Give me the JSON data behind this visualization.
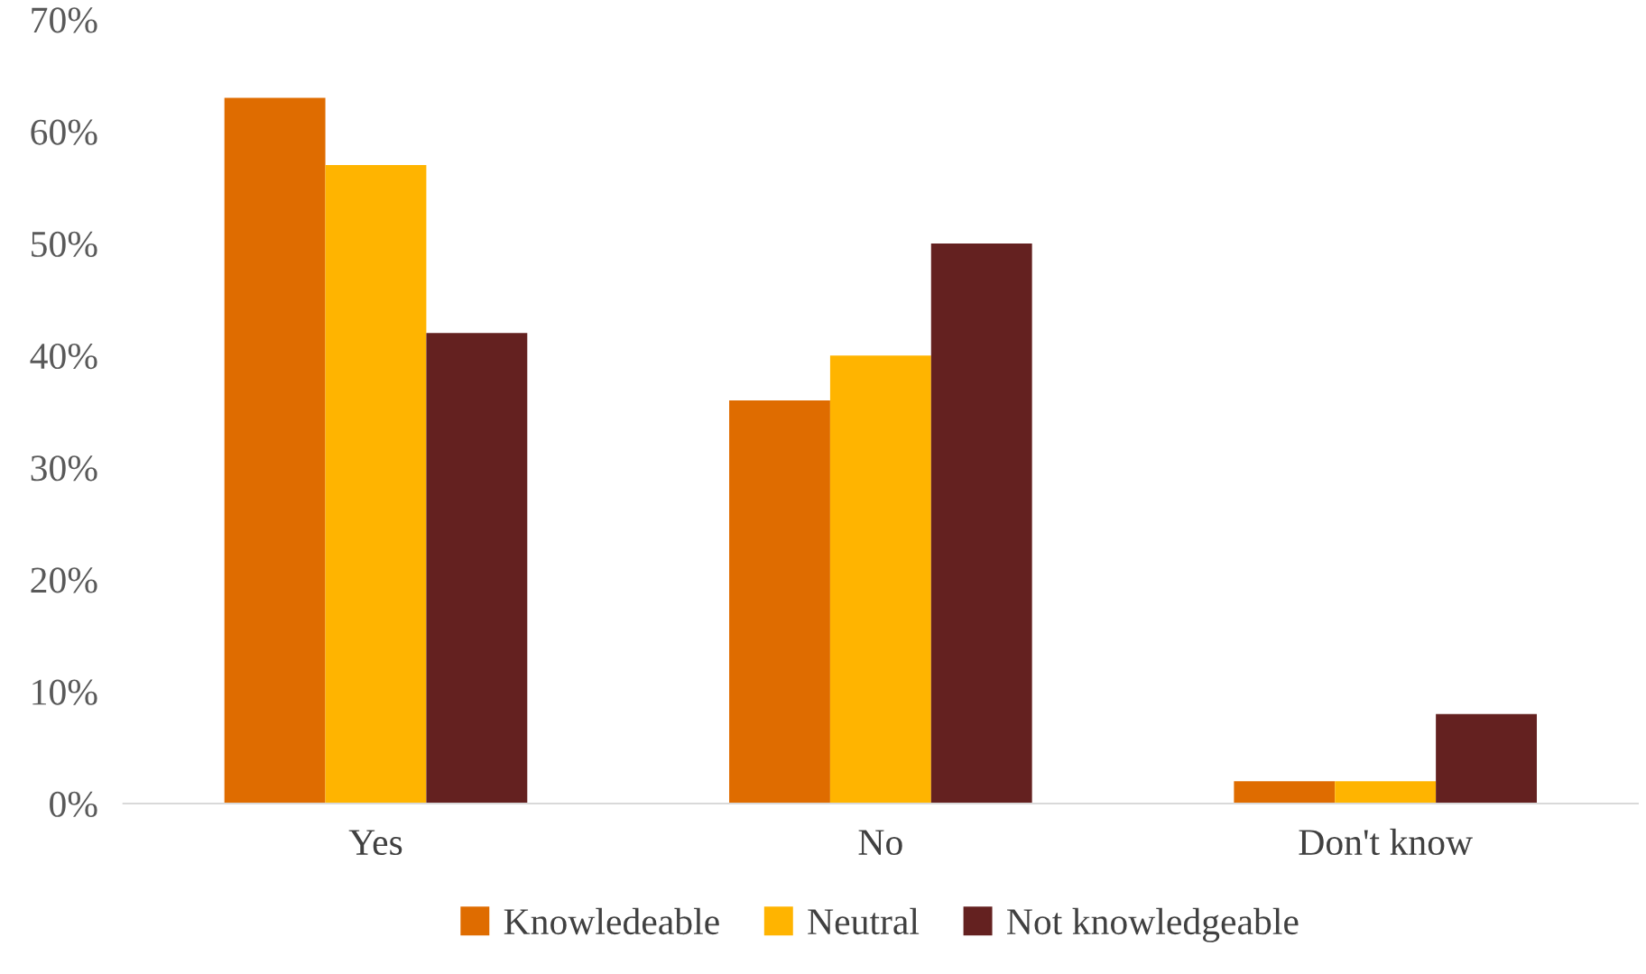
{
  "chart_data": {
    "type": "bar",
    "categories": [
      "Yes",
      "No",
      "Don't know"
    ],
    "series": [
      {
        "name": "Knowledeable",
        "color": "#df6c00",
        "values": [
          63,
          36,
          2
        ]
      },
      {
        "name": "Neutral",
        "color": "#ffb400",
        "values": [
          57,
          40,
          2
        ]
      },
      {
        "name": "Not knowledgeable",
        "color": "#642120",
        "values": [
          42,
          50,
          8
        ]
      }
    ],
    "ylim": [
      0,
      70
    ],
    "yticks": [
      {
        "value": 0,
        "label": "0%"
      },
      {
        "value": 10,
        "label": "10%"
      },
      {
        "value": 20,
        "label": "20%"
      },
      {
        "value": 30,
        "label": "30%"
      },
      {
        "value": 40,
        "label": "40%"
      },
      {
        "value": 50,
        "label": "50%"
      },
      {
        "value": 60,
        "label": "60%"
      },
      {
        "value": 70,
        "label": "70%"
      }
    ],
    "grid": false,
    "legend": "bottom"
  }
}
